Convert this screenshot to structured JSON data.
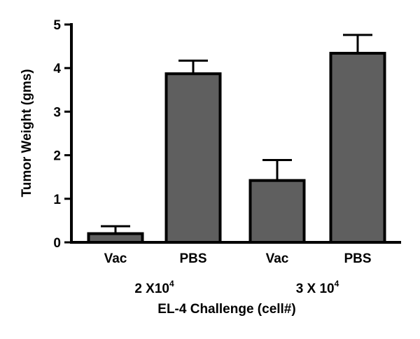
{
  "chart_data": {
    "type": "bar",
    "categories": [
      "Vac",
      "PBS",
      "Vac",
      "PBS"
    ],
    "groups": [
      {
        "label": "2 X10",
        "exponent": "4",
        "categories": [
          0,
          1
        ]
      },
      {
        "label": "3 X 10",
        "exponent": "4",
        "categories": [
          2,
          3
        ]
      }
    ],
    "values": [
      0.2,
      3.87,
      1.42,
      4.34
    ],
    "errors": [
      0.17,
      0.3,
      0.47,
      0.42
    ],
    "ylabel": "Tumor Weight (gms)",
    "xlabel": "EL-4 Challenge (cell#)",
    "ylim": [
      0,
      5
    ],
    "yticks": [
      "0",
      "1",
      "2",
      "3",
      "4",
      "5"
    ],
    "grid": false,
    "bar_color": "#5f5f5f",
    "edge_color": "#000000"
  }
}
